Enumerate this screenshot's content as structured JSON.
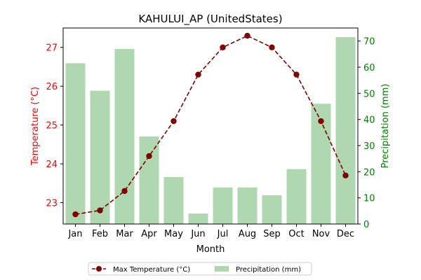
{
  "chart_data": {
    "type": "bar+line",
    "title": "KAHULUI_AP (UnitedStates)",
    "xlabel": "Month",
    "categories": [
      "Jan",
      "Feb",
      "Mar",
      "Apr",
      "May",
      "Jun",
      "Jul",
      "Aug",
      "Sep",
      "Oct",
      "Nov",
      "Dec"
    ],
    "left_axis": {
      "label": "Temperature (°C)",
      "color": "#ff0000",
      "ylim": [
        22.45,
        27.5
      ],
      "ticks": [
        23,
        24,
        25,
        26,
        27
      ]
    },
    "right_axis": {
      "label": "Precipitation (mm)",
      "color": "#008000",
      "ylim": [
        0,
        75
      ],
      "ticks": [
        0,
        10,
        20,
        30,
        40,
        50,
        60,
        70
      ]
    },
    "series": [
      {
        "name": "Max Temperature (°C)",
        "type": "line",
        "axis": "left",
        "color": "#800000",
        "linestyle": "dashed",
        "marker": "circle",
        "values": [
          22.7,
          22.8,
          23.3,
          24.2,
          25.1,
          26.3,
          27.0,
          27.3,
          27.0,
          26.3,
          25.1,
          23.7
        ]
      },
      {
        "name": "Precipitation (mm)",
        "type": "bar",
        "axis": "right",
        "color": "#b0d8b0",
        "values": [
          61.5,
          51.0,
          67.0,
          33.5,
          18.0,
          4.0,
          14.0,
          14.0,
          11.0,
          21.0,
          46.0,
          71.5
        ]
      }
    ],
    "legend": {
      "placement": "bottom-center"
    },
    "grid": false
  }
}
